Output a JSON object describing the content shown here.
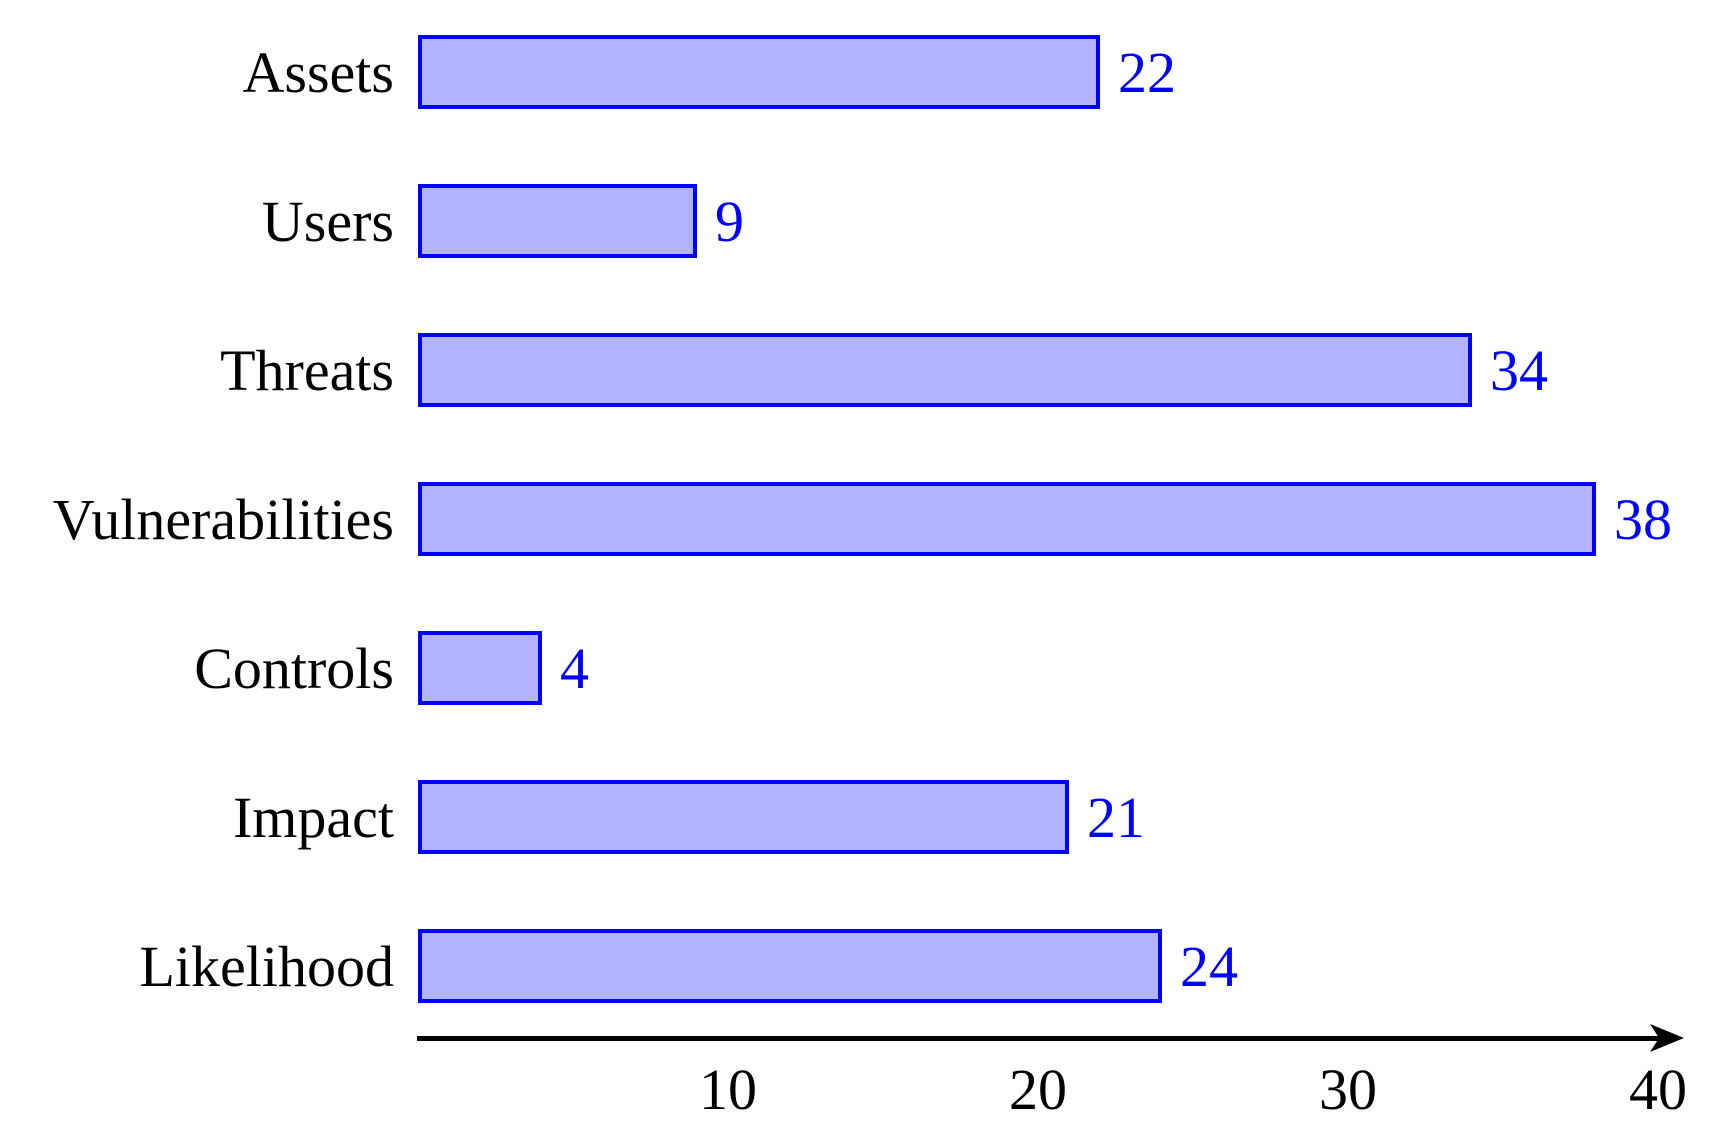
{
  "chart_data": {
    "type": "bar",
    "orientation": "horizontal",
    "title": "",
    "xlabel": "",
    "ylabel": "",
    "categories": [
      "Assets",
      "Users",
      "Threats",
      "Vulnerabilities",
      "Controls",
      "Impact",
      "Likelihood"
    ],
    "values": [
      22,
      9,
      34,
      38,
      4,
      21,
      24
    ],
    "value_labels": [
      "22",
      "9",
      "34",
      "38",
      "4",
      "21",
      "24"
    ],
    "xlim": [
      0,
      40
    ],
    "x_ticks": [
      "10",
      "20",
      "30",
      "40"
    ],
    "x_tick_values": [
      10,
      20,
      30,
      40
    ],
    "grid": false,
    "legend": false,
    "axis_arrow": true,
    "colors": {
      "bar_fill": "#b3b3ff",
      "bar_border": "#0000ff",
      "value_label": "#0000ff",
      "category_label": "#000000",
      "axis": "#000000"
    }
  }
}
